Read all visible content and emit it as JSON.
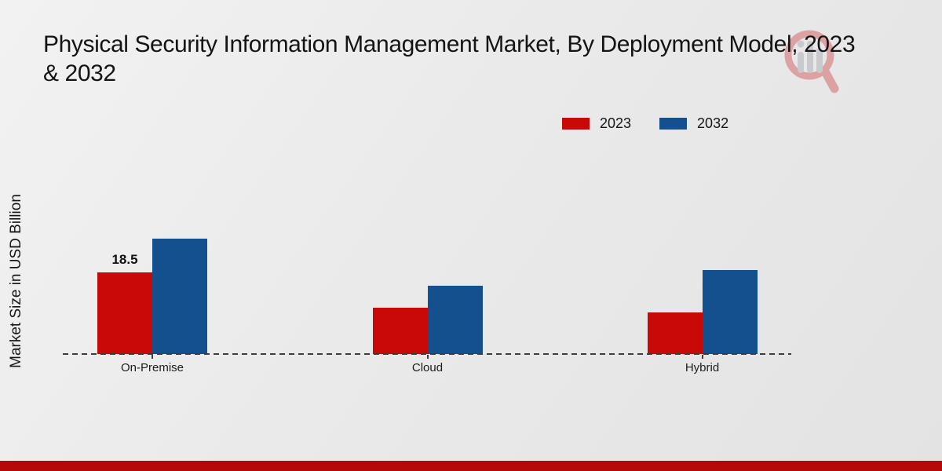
{
  "title": {
    "line1": "Physical Security Information Management Market, By Deployment Model, 2023",
    "line2": "& 2032"
  },
  "y_axis_label": "Market Size in USD Billion",
  "branding": {
    "logo_name": "market-research-future-watermark",
    "footer_bar_color": "#b50808"
  },
  "colors": {
    "series_2023": "#c90808",
    "series_2032": "#15508e",
    "axis": "#3d3d3d",
    "background": "#eaeaea"
  },
  "chart_data": {
    "type": "bar",
    "categories": [
      "On-Premise",
      "Cloud",
      "Hybrid"
    ],
    "series": [
      {
        "name": "2023",
        "color": "#c90808",
        "values": [
          18.5,
          10.5,
          9.4
        ]
      },
      {
        "name": "2032",
        "color": "#15508e",
        "values": [
          26.2,
          15.5,
          19.0
        ]
      }
    ],
    "data_labels": [
      {
        "category": "On-Premise",
        "series": "2023",
        "text": "18.5"
      }
    ],
    "title": "Physical Security Information Management Market, By Deployment Model, 2023 & 2032",
    "xlabel": "",
    "ylabel": "Market Size in USD Billion",
    "ylim": [
      0,
      30
    ],
    "grid": false,
    "legend_position": "top-right",
    "baseline_style": "dashed"
  }
}
